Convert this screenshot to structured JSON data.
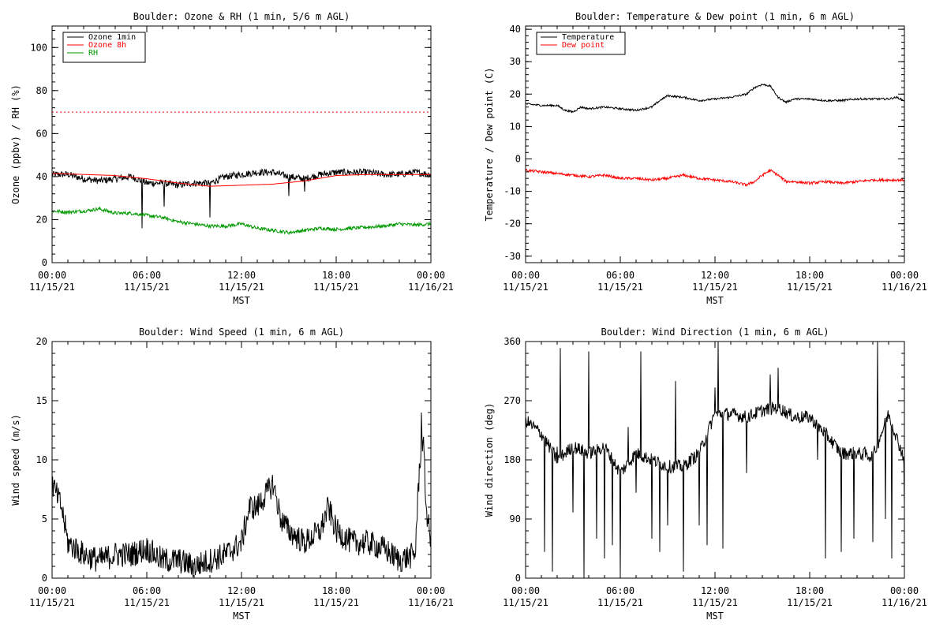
{
  "chart_data": [
    {
      "type": "line",
      "title": "Boulder: Ozone & RH (1 min, 5/6 m AGL)",
      "xlabel": "MST",
      "ylabel": "Ozone (ppbv) / RH (%)",
      "ylim": [
        0,
        110
      ],
      "yticks": [
        0,
        20,
        40,
        60,
        80,
        100
      ],
      "xlim": [
        0,
        24
      ],
      "xtick_hours": [
        0,
        6,
        12,
        18,
        24
      ],
      "xtick_labels": [
        [
          "00:00",
          "11/15/21"
        ],
        [
          "06:00",
          "11/15/21"
        ],
        [
          "12:00",
          "11/15/21"
        ],
        [
          "18:00",
          "11/15/21"
        ],
        [
          "00:00",
          "11/16/21"
        ]
      ],
      "legend": "top-left",
      "series": [
        {
          "name": "Ozone 1min",
          "color": "#000000",
          "style": "solid",
          "noise": 1.6,
          "points": [
            [
              0,
              41
            ],
            [
              1,
              41
            ],
            [
              2,
              39
            ],
            [
              3,
              38
            ],
            [
              4,
              39
            ],
            [
              5,
              40
            ],
            [
              6,
              37
            ],
            [
              7,
              37
            ],
            [
              8,
              36
            ],
            [
              9,
              37
            ],
            [
              10,
              37
            ],
            [
              11,
              40
            ],
            [
              12,
              41
            ],
            [
              13,
              42
            ],
            [
              14,
              42
            ],
            [
              15,
              40
            ],
            [
              16,
              39
            ],
            [
              17,
              41
            ],
            [
              18,
              42
            ],
            [
              19,
              42
            ],
            [
              20,
              42
            ],
            [
              21,
              41
            ],
            [
              22,
              41
            ],
            [
              23,
              42
            ],
            [
              24,
              41
            ]
          ],
          "spikes": [
            [
              5.7,
              16
            ],
            [
              7.1,
              26
            ],
            [
              10,
              21
            ],
            [
              15,
              31
            ],
            [
              16,
              33
            ]
          ]
        },
        {
          "name": "Ozone 8h",
          "color": "#ff0000",
          "style": "solid",
          "noise": 0,
          "points": [
            [
              0,
              41.5
            ],
            [
              2,
              41
            ],
            [
              4,
              40.5
            ],
            [
              6,
              39
            ],
            [
              8,
              37
            ],
            [
              10,
              35.5
            ],
            [
              12,
              36
            ],
            [
              14,
              36.5
            ],
            [
              16,
              38
            ],
            [
              18,
              40.5
            ],
            [
              20,
              41
            ],
            [
              22,
              41
            ],
            [
              24,
              41
            ]
          ]
        },
        {
          "name": "",
          "color": "#ff0000",
          "style": "dotted",
          "noise": 0,
          "points": [
            [
              0,
              70
            ],
            [
              24,
              70
            ]
          ]
        },
        {
          "name": "RH",
          "color": "#009900",
          "style": "solid",
          "noise": 0.8,
          "points": [
            [
              0,
              24
            ],
            [
              1,
              23.5
            ],
            [
              2,
              24
            ],
            [
              3,
              25
            ],
            [
              4,
              23
            ],
            [
              5,
              23
            ],
            [
              6,
              22
            ],
            [
              7,
              21
            ],
            [
              8,
              19
            ],
            [
              9,
              18
            ],
            [
              10,
              17
            ],
            [
              11,
              17
            ],
            [
              12,
              18
            ],
            [
              13,
              16
            ],
            [
              14,
              15
            ],
            [
              15,
              14
            ],
            [
              16,
              15
            ],
            [
              17,
              16
            ],
            [
              18,
              15.5
            ],
            [
              19,
              16
            ],
            [
              20,
              16.5
            ],
            [
              21,
              17
            ],
            [
              22,
              18
            ],
            [
              23,
              17.5
            ],
            [
              24,
              18
            ]
          ]
        }
      ]
    },
    {
      "type": "line",
      "title": "Boulder: Temperature & Dew point (1 min, 6 m AGL)",
      "xlabel": "MST",
      "ylabel": "Temperature / Dew point (C)",
      "ylim": [
        -32,
        41
      ],
      "yticks": [
        -30,
        -20,
        -10,
        0,
        10,
        20,
        30,
        40
      ],
      "xlim": [
        0,
        24
      ],
      "xtick_hours": [
        0,
        6,
        12,
        18,
        24
      ],
      "xtick_labels": [
        [
          "00:00",
          "11/15/21"
        ],
        [
          "06:00",
          "11/15/21"
        ],
        [
          "12:00",
          "11/15/21"
        ],
        [
          "18:00",
          "11/15/21"
        ],
        [
          "00:00",
          "11/16/21"
        ]
      ],
      "legend": "top-left",
      "series": [
        {
          "name": "Temperature",
          "color": "#000000",
          "style": "solid",
          "noise": 0.3,
          "points": [
            [
              0,
              17
            ],
            [
              1,
              16.5
            ],
            [
              2,
              16.5
            ],
            [
              2.5,
              15
            ],
            [
              3,
              14.5
            ],
            [
              3.5,
              16
            ],
            [
              4,
              15.5
            ],
            [
              5,
              16
            ],
            [
              6,
              15.5
            ],
            [
              7,
              15
            ],
            [
              8,
              16
            ],
            [
              8.5,
              18
            ],
            [
              9,
              19.5
            ],
            [
              10,
              19
            ],
            [
              11,
              18
            ],
            [
              12,
              18.5
            ],
            [
              13,
              19
            ],
            [
              14,
              20
            ],
            [
              14.5,
              22
            ],
            [
              15,
              23
            ],
            [
              15.5,
              22.5
            ],
            [
              16,
              19
            ],
            [
              16.5,
              17.5
            ],
            [
              17,
              18.5
            ],
            [
              18,
              18.5
            ],
            [
              19,
              18
            ],
            [
              20,
              18
            ],
            [
              21,
              18.5
            ],
            [
              22,
              18.5
            ],
            [
              23,
              18.5
            ],
            [
              23.5,
              19
            ],
            [
              24,
              18
            ]
          ]
        },
        {
          "name": "Dew point",
          "color": "#ff0000",
          "style": "solid",
          "noise": 0.4,
          "points": [
            [
              0,
              -3.5
            ],
            [
              1,
              -4
            ],
            [
              2,
              -4.5
            ],
            [
              3,
              -5
            ],
            [
              4,
              -5.5
            ],
            [
              5,
              -5
            ],
            [
              6,
              -6
            ],
            [
              7,
              -6
            ],
            [
              8,
              -6.5
            ],
            [
              9,
              -6
            ],
            [
              10,
              -5
            ],
            [
              11,
              -6
            ],
            [
              12,
              -6.5
            ],
            [
              13,
              -7
            ],
            [
              14,
              -8
            ],
            [
              14.5,
              -7
            ],
            [
              15,
              -5
            ],
            [
              15.5,
              -3.5
            ],
            [
              16,
              -5
            ],
            [
              16.5,
              -7
            ],
            [
              17,
              -7
            ],
            [
              18,
              -7.5
            ],
            [
              19,
              -7
            ],
            [
              20,
              -7.5
            ],
            [
              21,
              -7
            ],
            [
              22,
              -6.5
            ],
            [
              23,
              -6.5
            ],
            [
              24,
              -6.5
            ]
          ]
        }
      ]
    },
    {
      "type": "line",
      "title": "Boulder: Wind Speed (1 min, 6 m AGL)",
      "xlabel": "MST",
      "ylabel": "Wind speed (m/s)",
      "ylim": [
        0,
        20
      ],
      "yticks": [
        0,
        5,
        10,
        15,
        20
      ],
      "xlim": [
        0,
        24
      ],
      "xtick_hours": [
        0,
        6,
        12,
        18,
        24
      ],
      "xtick_labels": [
        [
          "00:00",
          "11/15/21"
        ],
        [
          "06:00",
          "11/15/21"
        ],
        [
          "12:00",
          "11/15/21"
        ],
        [
          "18:00",
          "11/15/21"
        ],
        [
          "00:00",
          "11/16/21"
        ]
      ],
      "legend": "none",
      "series": [
        {
          "name": "",
          "color": "#000000",
          "style": "solid",
          "noise": 1.1,
          "points": [
            [
              0,
              8
            ],
            [
              0.3,
              7
            ],
            [
              0.6,
              6
            ],
            [
              1,
              3
            ],
            [
              2,
              2
            ],
            [
              3,
              1.5
            ],
            [
              4,
              2
            ],
            [
              5,
              2
            ],
            [
              6,
              2.5
            ],
            [
              7,
              1.5
            ],
            [
              8,
              1.5
            ],
            [
              9,
              1
            ],
            [
              10,
              1.5
            ],
            [
              11,
              2
            ],
            [
              12,
              3
            ],
            [
              12.5,
              6
            ],
            [
              13,
              6
            ],
            [
              14,
              8
            ],
            [
              14.5,
              5
            ],
            [
              15,
              4
            ],
            [
              16,
              3
            ],
            [
              17,
              4
            ],
            [
              17.5,
              6
            ],
            [
              18,
              4
            ],
            [
              19,
              3
            ],
            [
              20,
              3
            ],
            [
              21,
              2.5
            ],
            [
              22,
              1.5
            ],
            [
              23,
              2
            ],
            [
              23.3,
              10
            ],
            [
              23.5,
              12
            ],
            [
              23.7,
              6
            ],
            [
              24,
              3
            ]
          ],
          "spikes": [
            [
              23.4,
              14
            ]
          ]
        }
      ]
    },
    {
      "type": "line",
      "title": "Boulder: Wind Direction (1 min, 6 m AGL)",
      "xlabel": "MST",
      "ylabel": "Wind direction (deg)",
      "ylim": [
        0,
        360
      ],
      "yticks": [
        0,
        90,
        180,
        270,
        360
      ],
      "xlim": [
        0,
        24
      ],
      "xtick_hours": [
        0,
        6,
        12,
        18,
        24
      ],
      "xtick_labels": [
        [
          "00:00",
          "11/15/21"
        ],
        [
          "06:00",
          "11/15/21"
        ],
        [
          "12:00",
          "11/15/21"
        ],
        [
          "18:00",
          "11/15/21"
        ],
        [
          "00:00",
          "11/16/21"
        ]
      ],
      "legend": "none",
      "series": [
        {
          "name": "",
          "color": "#000000",
          "style": "solid",
          "noise": 10,
          "points": [
            [
              0,
              240
            ],
            [
              1,
              220
            ],
            [
              2,
              180
            ],
            [
              3,
              200
            ],
            [
              4,
              190
            ],
            [
              5,
              200
            ],
            [
              6,
              160
            ],
            [
              7,
              190
            ],
            [
              8,
              180
            ],
            [
              9,
              170
            ],
            [
              10,
              170
            ],
            [
              11,
              190
            ],
            [
              12,
              250
            ],
            [
              13,
              250
            ],
            [
              14,
              245
            ],
            [
              15,
              255
            ],
            [
              16,
              260
            ],
            [
              17,
              245
            ],
            [
              18,
              245
            ],
            [
              19,
              220
            ],
            [
              20,
              190
            ],
            [
              21,
              190
            ],
            [
              22,
              185
            ],
            [
              23,
              250
            ],
            [
              24,
              180
            ]
          ],
          "spikes": [
            [
              1.2,
              40
            ],
            [
              1.7,
              10
            ],
            [
              2.0,
              200
            ],
            [
              2.2,
              350
            ],
            [
              3.0,
              100
            ],
            [
              3.7,
              0
            ],
            [
              4.0,
              345
            ],
            [
              4.5,
              60
            ],
            [
              5.0,
              30
            ],
            [
              5.5,
              50
            ],
            [
              6.0,
              5
            ],
            [
              6.5,
              230
            ],
            [
              7.0,
              130
            ],
            [
              7.3,
              345
            ],
            [
              8.0,
              60
            ],
            [
              8.5,
              40
            ],
            [
              9.0,
              80
            ],
            [
              9.5,
              300
            ],
            [
              10.0,
              10
            ],
            [
              10.5,
              190
            ],
            [
              11.0,
              80
            ],
            [
              11.5,
              50
            ],
            [
              12.0,
              290
            ],
            [
              12.2,
              360
            ],
            [
              12.5,
              45
            ],
            [
              14.0,
              160
            ],
            [
              15.5,
              310
            ],
            [
              16.0,
              320
            ],
            [
              18.5,
              180
            ],
            [
              19.0,
              30
            ],
            [
              20.0,
              40
            ],
            [
              20.8,
              60
            ],
            [
              21.5,
              200
            ],
            [
              22.0,
              55
            ],
            [
              22.3,
              360
            ],
            [
              22.8,
              90
            ],
            [
              23.2,
              30
            ],
            [
              23.5,
              220
            ],
            [
              24.0,
              110
            ]
          ]
        }
      ]
    }
  ]
}
